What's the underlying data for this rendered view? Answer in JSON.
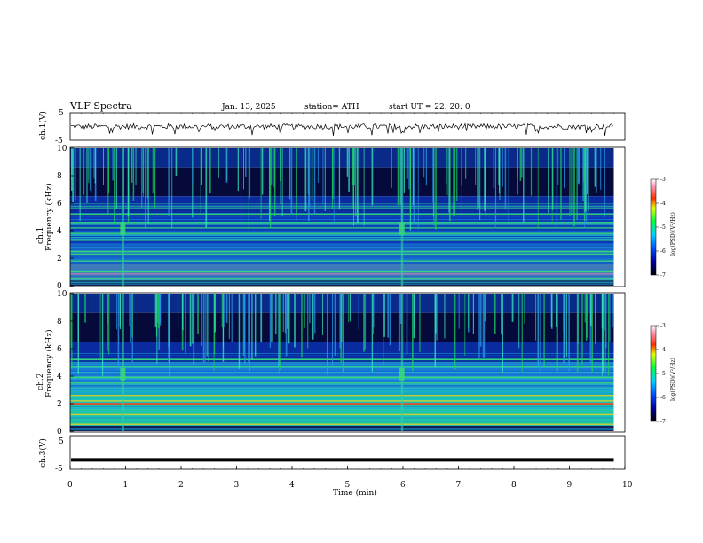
{
  "header": {
    "title": "VLF  Spectra",
    "date": "Jan. 13, 2025",
    "station": "station= ATH",
    "start": "start  UT  =   22: 20: 0"
  },
  "chart_data": [
    {
      "id": "ch1-waveform",
      "type": "line",
      "ylabel": "ch.1(V)",
      "yticks": [
        "5",
        "-5"
      ],
      "ylim": [
        -5,
        5
      ],
      "x_range_min": [
        0,
        10
      ],
      "data_end_min": 9.8,
      "baseline_v": 0,
      "noise_amplitude_v": 1.0,
      "line_color": "#000000"
    },
    {
      "id": "ch1-spectrogram",
      "type": "heatmap",
      "ylabel": "ch.1\nFrequency  (kHz)",
      "ylabel_lines": [
        "ch.1",
        "Frequency  (kHz)"
      ],
      "yticks": [
        "0",
        "2",
        "4",
        "6",
        "8",
        "10"
      ],
      "ylim_khz": [
        0,
        10
      ],
      "colorbar": {
        "label": "log(PSD)(V²/Hz)",
        "ticks": [
          "-3",
          "-4",
          "-5",
          "-6",
          "-7"
        ],
        "range": [
          -7,
          -3
        ]
      },
      "bright_bands_khz": [
        0.5,
        1.0,
        1.8,
        2.3,
        2.5,
        3.3,
        3.8,
        4.2,
        4.6,
        5.2,
        5.6
      ],
      "emission_events_min": [
        0.95,
        5.98
      ]
    },
    {
      "id": "ch2-spectrogram",
      "type": "heatmap",
      "ylabel": "ch.2\nFrequency  (kHz)",
      "ylabel_lines": [
        "ch.2",
        "Frequency  (kHz)"
      ],
      "yticks": [
        "0",
        "2",
        "4",
        "6",
        "8",
        "10"
      ],
      "ylim_khz": [
        0,
        10
      ],
      "colorbar": {
        "label": "log(PSD)(V²/Hz)",
        "ticks": [
          "-3",
          "-4",
          "-5",
          "-6",
          "-7"
        ],
        "range": [
          -7,
          -3
        ]
      },
      "bright_bands_khz": [
        0.5,
        1.2,
        2.0,
        2.2,
        2.6,
        3.5,
        3.9,
        4.7,
        5.2
      ],
      "emission_events_min": [
        0.95,
        5.98
      ]
    },
    {
      "id": "ch3-waveform",
      "type": "line",
      "ylabel": "ch.3(V)",
      "yticks": [
        "5",
        "-5"
      ],
      "ylim": [
        -5,
        5
      ],
      "x_range_min": [
        0,
        10
      ],
      "data_end_min": 9.8,
      "baseline_v": -2.2,
      "line_color": "#000000"
    }
  ],
  "xaxis": {
    "label": "Time  (min)",
    "ticks": [
      "0",
      "1",
      "2",
      "3",
      "4",
      "5",
      "6",
      "7",
      "8",
      "9",
      "10"
    ],
    "range": [
      0,
      10
    ]
  },
  "colors": {
    "spectro_low": "#000060",
    "spectro_mid": "#1a4fd8",
    "spectro_high": "#1fd6c8"
  }
}
